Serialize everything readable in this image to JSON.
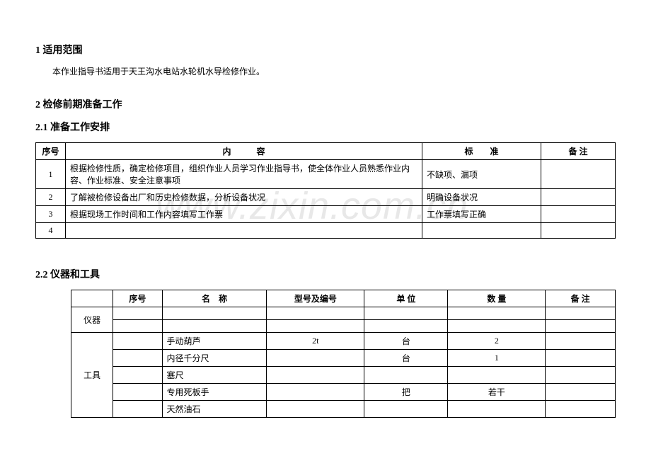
{
  "watermark": "www.zixin.com.cn",
  "section1": {
    "heading": "1  适用范围",
    "body": "本作业指导书适用于天王沟水电站水轮机水导检修作业。"
  },
  "section2": {
    "heading": "2  检修前期准备工作"
  },
  "section2_1": {
    "heading": "2.1 准备工作安排",
    "table": {
      "headers": {
        "seq": "序号",
        "content": "内　　　容",
        "standard": "标　　准",
        "note": "备  注"
      },
      "rows": [
        {
          "seq": "1",
          "content": "根据检修性质，确定检修项目，组织作业人员学习作业指导书，使全体作业人员熟悉作业内容、作业标准、安全注意事项",
          "standard": "不缺项、漏项",
          "note": ""
        },
        {
          "seq": "2",
          "content": "了解被检修设备出厂和历史检修数据，分析设备状况",
          "standard": "明确设备状况",
          "note": ""
        },
        {
          "seq": "3",
          "content": "根据现场工作时间和工作内容填写工作票",
          "standard": "工作票填写正确",
          "note": ""
        },
        {
          "seq": "4",
          "content": "",
          "standard": "",
          "note": ""
        }
      ]
    }
  },
  "section2_2": {
    "heading": "2.2 仪器和工具",
    "table": {
      "headers": {
        "category_instrument": "仪器",
        "category_tool": "工具",
        "seq": "序号",
        "name": "名　称",
        "model": "型号及编号",
        "unit": "单 位",
        "qty": "数 量",
        "note": "备 注"
      },
      "tool_rows": [
        {
          "name": "手动葫芦",
          "model": "2t",
          "unit": "台",
          "qty": "2",
          "note": ""
        },
        {
          "name": "内径千分尺",
          "model": "",
          "unit": "台",
          "qty": "1",
          "note": ""
        },
        {
          "name": "塞尺",
          "model": "",
          "unit": "",
          "qty": "",
          "note": ""
        },
        {
          "name": "专用死板手",
          "model": "",
          "unit": "把",
          "qty": "若干",
          "note": ""
        },
        {
          "name": "天然油石",
          "model": "",
          "unit": "",
          "qty": "",
          "note": ""
        }
      ]
    }
  }
}
